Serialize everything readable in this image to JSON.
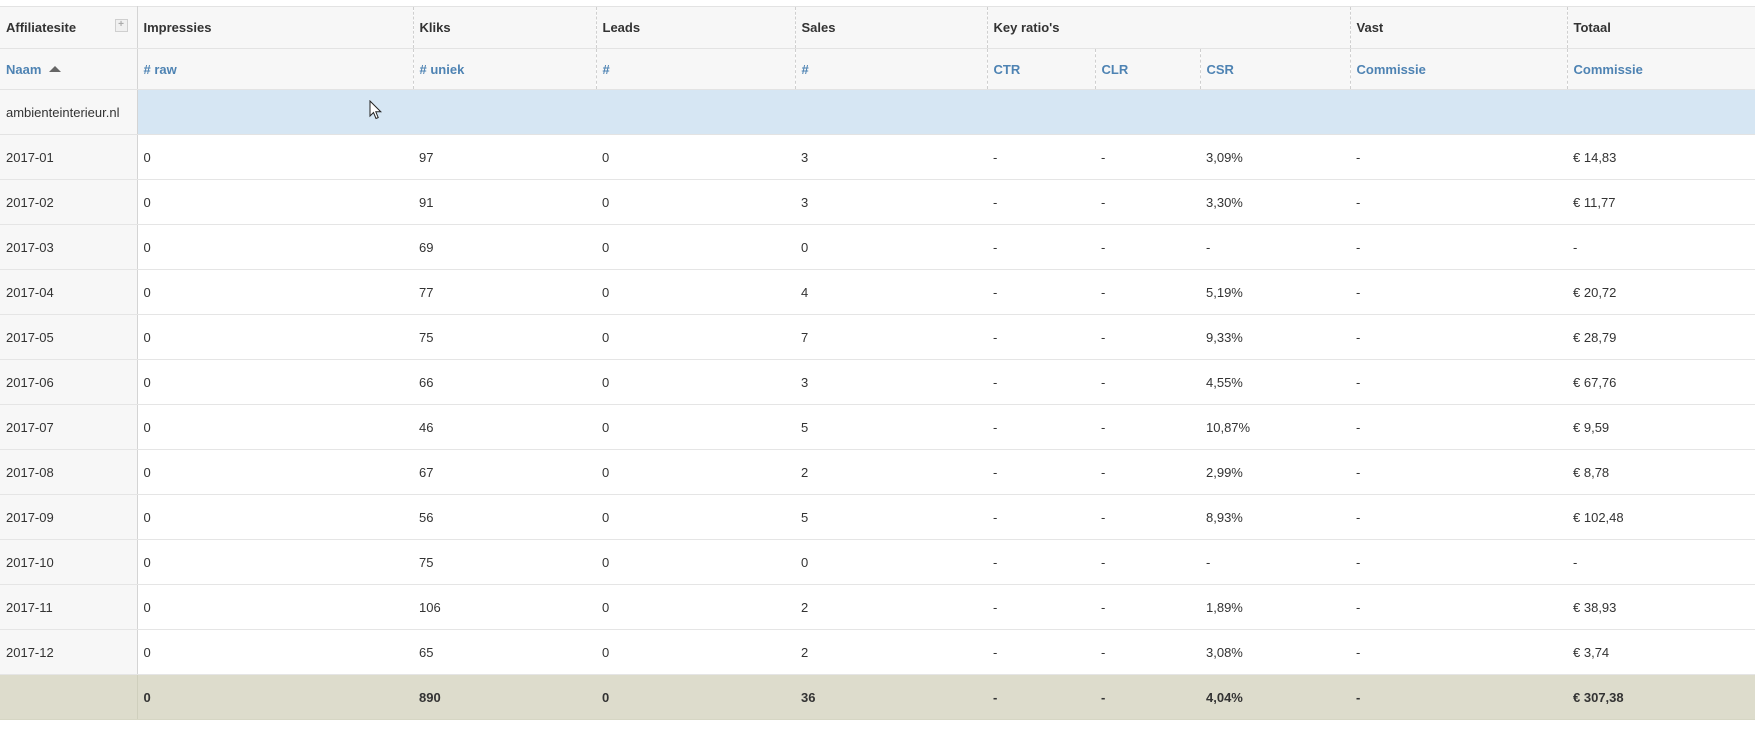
{
  "header_top": {
    "affiliatesite": "Affiliatesite",
    "expand_icon": "+",
    "impressies": "Impressies",
    "kliks": "Kliks",
    "leads": "Leads",
    "sales": "Sales",
    "key_ratios": "Key ratio's",
    "vast": "Vast",
    "totaal": "Totaal"
  },
  "header_sub": {
    "naam": "Naam",
    "raw": "# raw",
    "uniek": "# uniek",
    "leads_count": "#",
    "sales_count": "#",
    "ctr": "CTR",
    "clr": "CLR",
    "csr": "CSR",
    "vast_commissie": "Commissie",
    "totaal_commissie": "Commissie"
  },
  "group": {
    "name": "ambienteinterieur.nl"
  },
  "rows": [
    {
      "naam": "2017-01",
      "raw": "0",
      "uniek": "97",
      "leads": "0",
      "sales": "3",
      "ctr": "-",
      "clr": "-",
      "csr": "3,09%",
      "vast": "-",
      "totaal": "€ 14,83"
    },
    {
      "naam": "2017-02",
      "raw": "0",
      "uniek": "91",
      "leads": "0",
      "sales": "3",
      "ctr": "-",
      "clr": "-",
      "csr": "3,30%",
      "vast": "-",
      "totaal": "€ 11,77"
    },
    {
      "naam": "2017-03",
      "raw": "0",
      "uniek": "69",
      "leads": "0",
      "sales": "0",
      "ctr": "-",
      "clr": "-",
      "csr": "-",
      "vast": "-",
      "totaal": "-"
    },
    {
      "naam": "2017-04",
      "raw": "0",
      "uniek": "77",
      "leads": "0",
      "sales": "4",
      "ctr": "-",
      "clr": "-",
      "csr": "5,19%",
      "vast": "-",
      "totaal": "€ 20,72"
    },
    {
      "naam": "2017-05",
      "raw": "0",
      "uniek": "75",
      "leads": "0",
      "sales": "7",
      "ctr": "-",
      "clr": "-",
      "csr": "9,33%",
      "vast": "-",
      "totaal": "€ 28,79"
    },
    {
      "naam": "2017-06",
      "raw": "0",
      "uniek": "66",
      "leads": "0",
      "sales": "3",
      "ctr": "-",
      "clr": "-",
      "csr": "4,55%",
      "vast": "-",
      "totaal": "€ 67,76"
    },
    {
      "naam": "2017-07",
      "raw": "0",
      "uniek": "46",
      "leads": "0",
      "sales": "5",
      "ctr": "-",
      "clr": "-",
      "csr": "10,87%",
      "vast": "-",
      "totaal": "€ 9,59"
    },
    {
      "naam": "2017-08",
      "raw": "0",
      "uniek": "67",
      "leads": "0",
      "sales": "2",
      "ctr": "-",
      "clr": "-",
      "csr": "2,99%",
      "vast": "-",
      "totaal": "€ 8,78"
    },
    {
      "naam": "2017-09",
      "raw": "0",
      "uniek": "56",
      "leads": "0",
      "sales": "5",
      "ctr": "-",
      "clr": "-",
      "csr": "8,93%",
      "vast": "-",
      "totaal": "€ 102,48"
    },
    {
      "naam": "2017-10",
      "raw": "0",
      "uniek": "75",
      "leads": "0",
      "sales": "0",
      "ctr": "-",
      "clr": "-",
      "csr": "-",
      "vast": "-",
      "totaal": "-"
    },
    {
      "naam": "2017-11",
      "raw": "0",
      "uniek": "106",
      "leads": "0",
      "sales": "2",
      "ctr": "-",
      "clr": "-",
      "csr": "1,89%",
      "vast": "-",
      "totaal": "€ 38,93"
    },
    {
      "naam": "2017-12",
      "raw": "0",
      "uniek": "65",
      "leads": "0",
      "sales": "2",
      "ctr": "-",
      "clr": "-",
      "csr": "3,08%",
      "vast": "-",
      "totaal": "€ 3,74"
    }
  ],
  "total": {
    "naam": "",
    "raw": "0",
    "uniek": "890",
    "leads": "0",
    "sales": "36",
    "ctr": "-",
    "clr": "-",
    "csr": "4,04%",
    "vast": "-",
    "totaal": "€ 307,38"
  },
  "colors": {
    "link": "#4e83b3",
    "group_bg": "#d6e6f3",
    "total_bg": "#dddccc",
    "header_bg": "#f7f7f7"
  },
  "icons": {
    "sort": "sort-ascending-icon",
    "cursor": "mouse-cursor-icon",
    "expand": "expand-plus-icon"
  }
}
